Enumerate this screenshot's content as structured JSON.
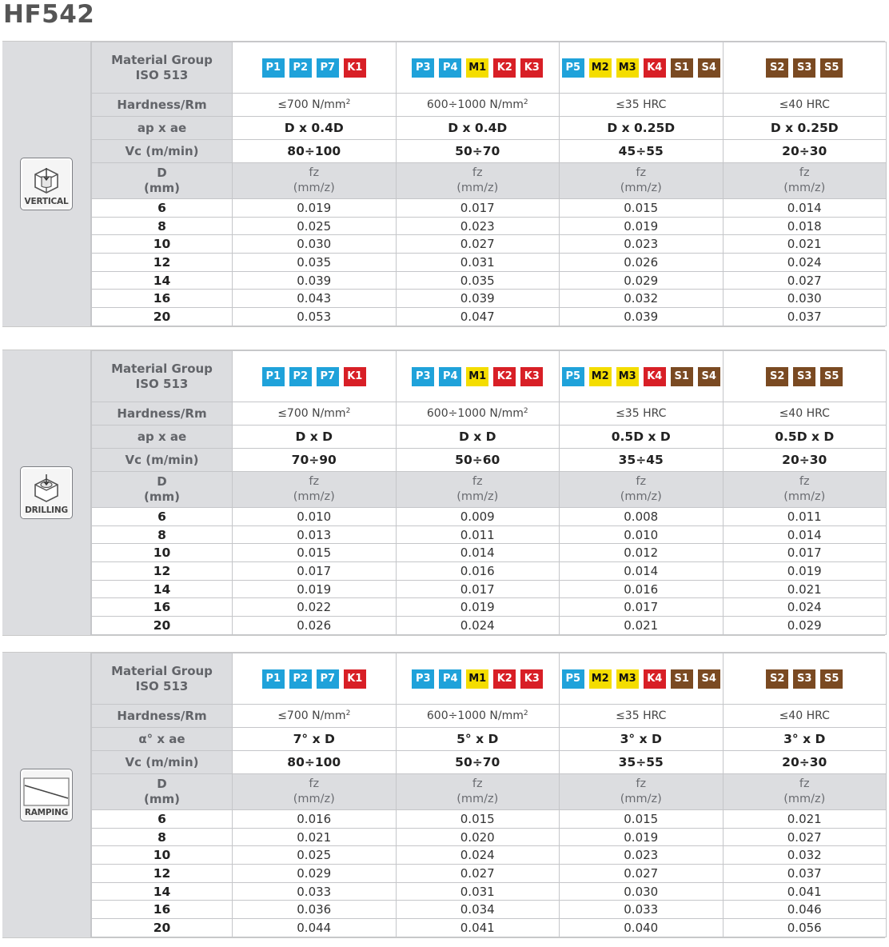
{
  "title": "HF542",
  "colors": {
    "blue": "#1fa2da",
    "yellow": "#f4dd00",
    "red": "#d81f26",
    "brown": "#7a4a22",
    "label_bg": "#dcdde0"
  },
  "labels": {
    "material_group": [
      "Material Group",
      "ISO 513"
    ],
    "hardness": "Hardness/Rm",
    "d_header": [
      "D",
      "(mm)"
    ],
    "fz_header": [
      "fz",
      "(mm/z)"
    ]
  },
  "material_columns": [
    [
      {
        "code": "P1",
        "color": "blue"
      },
      {
        "code": "P2",
        "color": "blue"
      },
      {
        "code": "P7",
        "color": "blue"
      },
      {
        "code": "K1",
        "color": "red"
      }
    ],
    [
      {
        "code": "P3",
        "color": "blue"
      },
      {
        "code": "P4",
        "color": "blue"
      },
      {
        "code": "M1",
        "color": "yellow"
      },
      {
        "code": "K2",
        "color": "red"
      },
      {
        "code": "K3",
        "color": "red"
      }
    ],
    [
      {
        "code": "P5",
        "color": "blue"
      },
      {
        "code": "M2",
        "color": "yellow"
      },
      {
        "code": "M3",
        "color": "yellow"
      },
      {
        "code": "K4",
        "color": "red"
      },
      {
        "code": "S1",
        "color": "brown"
      },
      {
        "code": "S4",
        "color": "brown"
      }
    ],
    [
      {
        "code": "S2",
        "color": "brown"
      },
      {
        "code": "S3",
        "color": "brown"
      },
      {
        "code": "S5",
        "color": "brown"
      }
    ]
  ],
  "hardness_values": [
    {
      "text": "≤700 N/mm",
      "sup": "2"
    },
    {
      "text": "600÷1000 N/mm",
      "sup": "2"
    },
    {
      "text": "≤35 HRC",
      "sup": ""
    },
    {
      "text": "≤40 HRC",
      "sup": ""
    }
  ],
  "d_values": [
    "6",
    "8",
    "10",
    "12",
    "14",
    "16",
    "20"
  ],
  "sections": [
    {
      "icon_name": "vertical-milling-icon",
      "icon_label": "VERTICAL",
      "param_label": "ap x ae",
      "param_values": [
        "D x 0.4D",
        "D x 0.4D",
        "D x 0.25D",
        "D x 0.25D"
      ],
      "vc_label": "Vc (m/min)",
      "vc_values": [
        "80÷100",
        "50÷70",
        "45÷55",
        "20÷30"
      ],
      "fz": [
        [
          "0.019",
          "0.017",
          "0.015",
          "0.014"
        ],
        [
          "0.025",
          "0.023",
          "0.019",
          "0.018"
        ],
        [
          "0.030",
          "0.027",
          "0.023",
          "0.021"
        ],
        [
          "0.035",
          "0.031",
          "0.026",
          "0.024"
        ],
        [
          "0.039",
          "0.035",
          "0.029",
          "0.027"
        ],
        [
          "0.043",
          "0.039",
          "0.032",
          "0.030"
        ],
        [
          "0.053",
          "0.047",
          "0.039",
          "0.037"
        ]
      ]
    },
    {
      "icon_name": "drilling-icon",
      "icon_label": "DRILLING",
      "param_label": "ap x ae",
      "param_values": [
        "D x D",
        "D x D",
        "0.5D x D",
        "0.5D x D"
      ],
      "vc_label": "Vc (m/min)",
      "vc_values": [
        "70÷90",
        "50÷60",
        "35÷45",
        "20÷30"
      ],
      "fz": [
        [
          "0.010",
          "0.009",
          "0.008",
          "0.011"
        ],
        [
          "0.013",
          "0.011",
          "0.010",
          "0.014"
        ],
        [
          "0.015",
          "0.014",
          "0.012",
          "0.017"
        ],
        [
          "0.017",
          "0.016",
          "0.014",
          "0.019"
        ],
        [
          "0.019",
          "0.017",
          "0.016",
          "0.021"
        ],
        [
          "0.022",
          "0.019",
          "0.017",
          "0.024"
        ],
        [
          "0.026",
          "0.024",
          "0.021",
          "0.029"
        ]
      ]
    },
    {
      "icon_name": "ramping-icon",
      "icon_label": "RAMPING",
      "param_label": "α° x ae",
      "param_values": [
        "7° x D",
        "5° x D",
        "3° x D",
        "3° x D"
      ],
      "vc_label": "Vc (m/min)",
      "vc_values": [
        "80÷100",
        "50÷70",
        "35÷55",
        "20÷30"
      ],
      "fz": [
        [
          "0.016",
          "0.015",
          "0.015",
          "0.021"
        ],
        [
          "0.021",
          "0.020",
          "0.019",
          "0.027"
        ],
        [
          "0.025",
          "0.024",
          "0.023",
          "0.032"
        ],
        [
          "0.029",
          "0.027",
          "0.027",
          "0.037"
        ],
        [
          "0.033",
          "0.031",
          "0.030",
          "0.041"
        ],
        [
          "0.036",
          "0.034",
          "0.033",
          "0.046"
        ],
        [
          "0.044",
          "0.041",
          "0.040",
          "0.056"
        ]
      ]
    }
  ]
}
